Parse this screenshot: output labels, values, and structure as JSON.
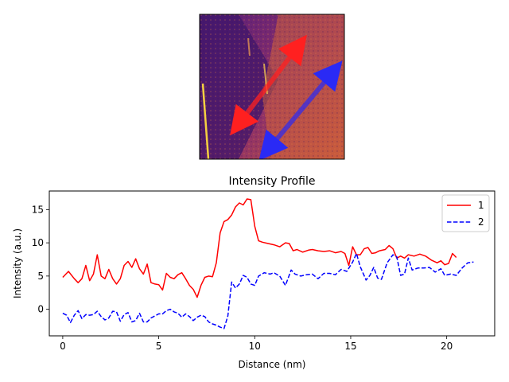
{
  "image_panel": {
    "arrows": [
      {
        "name": "1",
        "color": "#ff2020"
      },
      {
        "name": "2",
        "color": "#2020ff"
      }
    ]
  },
  "chart_data": {
    "type": "line",
    "title": "Intensity Profile",
    "xlabel": "Distance (nm)",
    "ylabel": "Intensity (a.u.)",
    "xlim": [
      -0.7,
      22.5
    ],
    "ylim": [
      -4,
      17.8
    ],
    "xticks": [
      0,
      5,
      10,
      15,
      20
    ],
    "yticks": [
      0,
      5,
      10,
      15
    ],
    "grid": false,
    "legend_position": "top-right",
    "series": [
      {
        "name": "1",
        "color": "#ff0000",
        "dash": "solid",
        "x": [
          0,
          0.3,
          0.6,
          0.8,
          1.0,
          1.2,
          1.4,
          1.6,
          1.8,
          2.0,
          2.2,
          2.4,
          2.6,
          2.8,
          3.0,
          3.2,
          3.4,
          3.6,
          3.8,
          4.0,
          4.2,
          4.4,
          4.6,
          4.8,
          5.0,
          5.2,
          5.4,
          5.6,
          5.8,
          6.0,
          6.2,
          6.4,
          6.6,
          6.8,
          7.0,
          7.2,
          7.4,
          7.6,
          7.8,
          8.0,
          8.2,
          8.4,
          8.6,
          8.8,
          9.0,
          9.2,
          9.4,
          9.6,
          9.8,
          10.0,
          10.2,
          10.4,
          10.7,
          11.0,
          11.3,
          11.6,
          11.8,
          12.0,
          12.2,
          12.5,
          12.8,
          13.0,
          13.3,
          13.6,
          13.9,
          14.2,
          14.5,
          14.7,
          14.9,
          15.1,
          15.3,
          15.5,
          15.7,
          15.9,
          16.1,
          16.3,
          16.5,
          16.8,
          17.0,
          17.2,
          17.4,
          17.6,
          17.8,
          18.0,
          18.3,
          18.6,
          18.9,
          19.2,
          19.5,
          19.7,
          19.9,
          20.1,
          20.3,
          20.5
        ],
        "y": [
          4.8,
          5.7,
          4.6,
          4.0,
          4.6,
          6.6,
          4.3,
          5.3,
          8.2,
          5.0,
          4.6,
          6.0,
          4.6,
          3.8,
          4.6,
          6.6,
          7.2,
          6.3,
          7.6,
          6.1,
          5.3,
          6.8,
          4.0,
          3.8,
          3.7,
          2.9,
          5.4,
          4.8,
          4.6,
          5.2,
          5.5,
          4.6,
          3.6,
          3.0,
          1.8,
          3.6,
          4.8,
          5.0,
          4.9,
          7.0,
          11.5,
          13.2,
          13.5,
          14.2,
          15.4,
          16.0,
          15.7,
          16.6,
          16.5,
          12.5,
          10.3,
          10.1,
          9.9,
          9.7,
          9.4,
          10.0,
          9.9,
          8.8,
          9.0,
          8.6,
          8.9,
          9.0,
          8.8,
          8.7,
          8.8,
          8.5,
          8.7,
          8.4,
          6.6,
          9.4,
          8.2,
          8.2,
          9.1,
          9.3,
          8.4,
          8.5,
          8.8,
          9.0,
          9.6,
          9.1,
          7.7,
          8.0,
          7.7,
          8.2,
          8.0,
          8.3,
          8.0,
          7.4,
          7.0,
          7.3,
          6.7,
          6.9,
          8.4,
          7.8
        ]
      },
      {
        "name": "2",
        "color": "#0000ff",
        "dash": "dashed",
        "x": [
          0,
          0.2,
          0.4,
          0.6,
          0.8,
          1.0,
          1.2,
          1.4,
          1.6,
          1.8,
          2.0,
          2.2,
          2.4,
          2.6,
          2.8,
          3.0,
          3.2,
          3.4,
          3.6,
          3.8,
          4.0,
          4.2,
          4.4,
          4.6,
          4.8,
          5.0,
          5.2,
          5.4,
          5.6,
          5.8,
          6.0,
          6.2,
          6.4,
          6.6,
          6.8,
          7.0,
          7.2,
          7.4,
          7.6,
          7.8,
          8.0,
          8.2,
          8.4,
          8.6,
          8.8,
          9.0,
          9.2,
          9.4,
          9.6,
          9.8,
          10.0,
          10.2,
          10.5,
          10.8,
          11.0,
          11.3,
          11.6,
          11.9,
          12.1,
          12.4,
          12.7,
          13.0,
          13.3,
          13.6,
          13.9,
          14.2,
          14.5,
          14.8,
          15.1,
          15.3,
          15.5,
          15.8,
          16.0,
          16.2,
          16.4,
          16.6,
          16.9,
          17.2,
          17.4,
          17.6,
          17.8,
          18.0,
          18.2,
          18.5,
          18.8,
          19.1,
          19.4,
          19.7,
          19.9,
          20.2,
          20.5,
          20.8,
          21.1,
          21.4
        ],
        "y": [
          -0.6,
          -0.9,
          -2.0,
          -0.9,
          -0.2,
          -1.4,
          -0.8,
          -0.9,
          -0.8,
          -0.3,
          -1.1,
          -1.6,
          -1.3,
          -0.3,
          -0.4,
          -1.8,
          -0.8,
          -0.5,
          -1.9,
          -1.7,
          -0.6,
          -1.9,
          -1.9,
          -1.3,
          -1.0,
          -0.7,
          -0.7,
          -0.2,
          0.0,
          -0.4,
          -0.6,
          -1.2,
          -0.7,
          -1.1,
          -1.7,
          -1.2,
          -0.9,
          -1.1,
          -1.9,
          -2.2,
          -2.4,
          -2.7,
          -2.9,
          -1.0,
          4.1,
          3.2,
          3.8,
          5.1,
          4.8,
          3.8,
          3.6,
          5.0,
          5.5,
          5.3,
          5.5,
          5.0,
          3.6,
          5.9,
          5.3,
          5.0,
          5.2,
          5.3,
          4.6,
          5.4,
          5.4,
          5.2,
          6.0,
          5.7,
          7.1,
          8.4,
          6.4,
          4.4,
          5.1,
          6.3,
          4.7,
          4.5,
          7.0,
          8.2,
          7.9,
          5.1,
          5.3,
          7.7,
          5.9,
          6.2,
          6.2,
          6.3,
          5.6,
          6.1,
          5.1,
          5.3,
          5.1,
          6.2,
          7.0,
          7.1
        ]
      }
    ]
  }
}
